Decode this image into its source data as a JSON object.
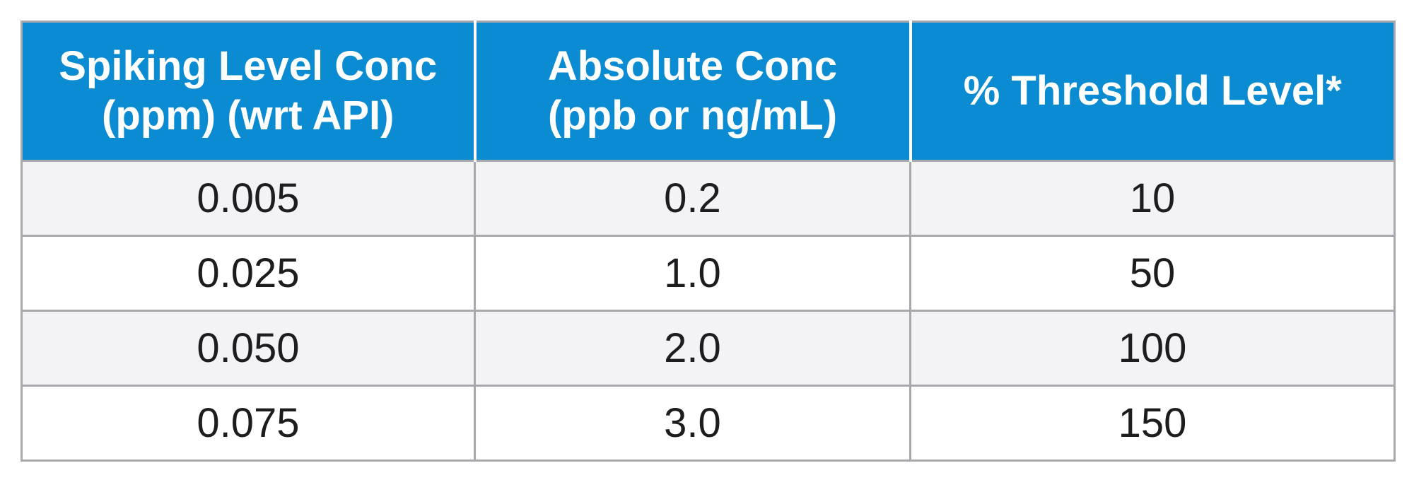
{
  "table": {
    "header": [
      [
        "Spiking Level Conc",
        "(ppm) (wrt API)"
      ],
      [
        "Absolute Conc",
        "(ppb or ng/mL)"
      ],
      [
        "% Threshold Level*"
      ]
    ],
    "rows": [
      [
        "0.005",
        "0.2",
        "10"
      ],
      [
        "0.025",
        "1.0",
        "50"
      ],
      [
        "0.050",
        "2.0",
        "100"
      ],
      [
        "0.075",
        "3.0",
        "150"
      ]
    ]
  }
}
